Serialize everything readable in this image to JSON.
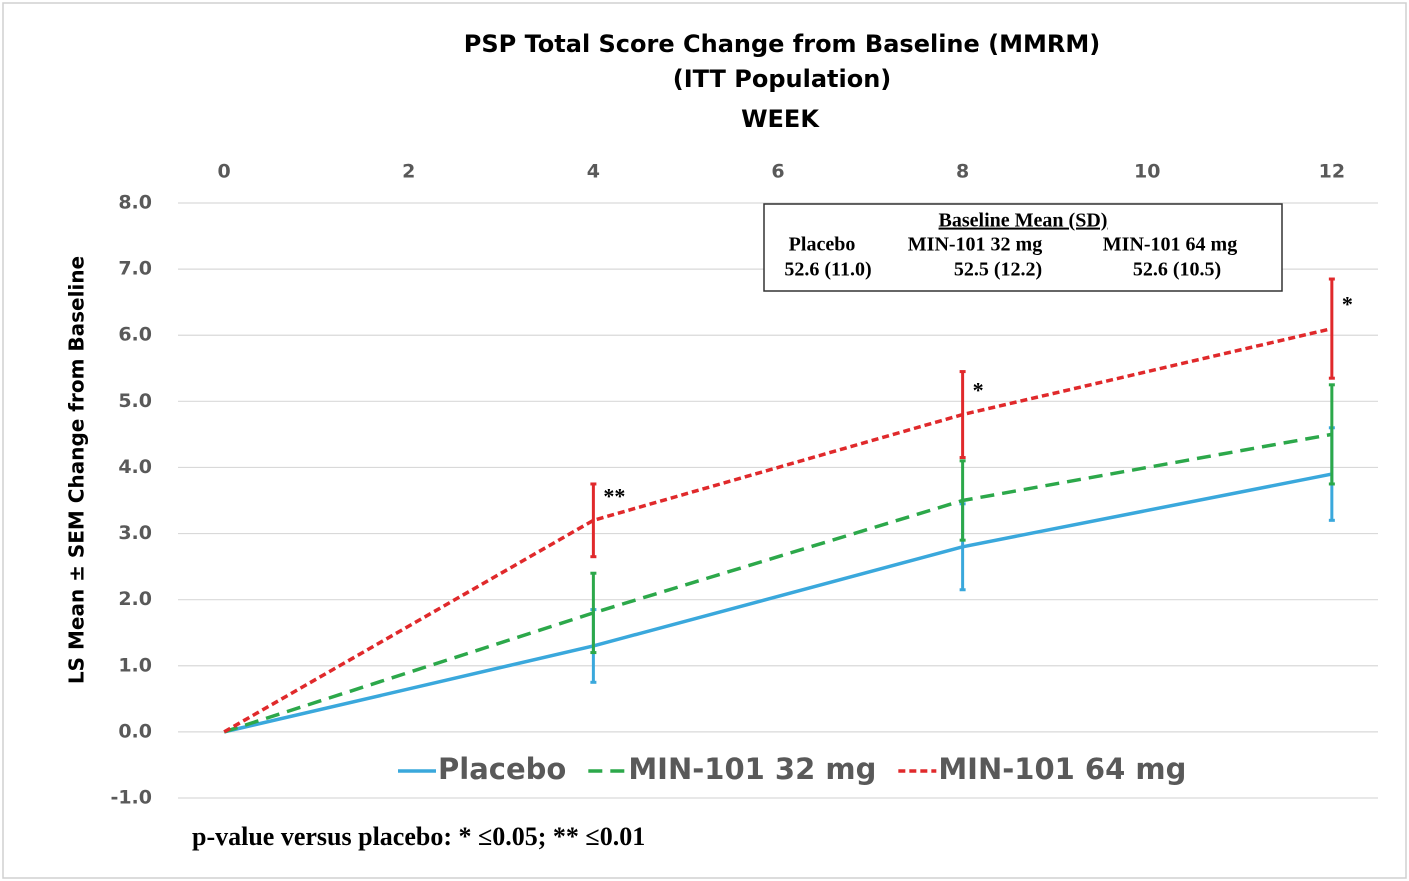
{
  "chart_data": {
    "type": "line",
    "title": "PSP Total Score Change from Baseline (MMRM)",
    "subtitle": "(ITT Population)",
    "x_label": "WEEK",
    "y_label": "LS Mean ± SEM Change from Baseline",
    "x": [
      0,
      4,
      8,
      12
    ],
    "xlim": [
      -0.5,
      12.5
    ],
    "xticks": [
      0,
      2,
      4,
      6,
      8,
      10,
      12
    ],
    "ylim": [
      -1,
      8
    ],
    "yticks": [
      {
        "value": -1,
        "label": "-1.0"
      },
      {
        "value": 0,
        "label": "0.0"
      },
      {
        "value": 1,
        "label": "1.0"
      },
      {
        "value": 2,
        "label": "2.0"
      },
      {
        "value": 3,
        "label": "3.0"
      },
      {
        "value": 4,
        "label": "4.0"
      },
      {
        "value": 5,
        "label": "5.0"
      },
      {
        "value": 6,
        "label": "6.0"
      },
      {
        "value": 7,
        "label": "7.0"
      },
      {
        "value": 8,
        "label": "8.0"
      }
    ],
    "grid": true,
    "legend": "bottom",
    "series": [
      {
        "name": "Placebo",
        "color": "#3aa8dc",
        "line_style": "solid",
        "values": [
          0,
          1.3,
          2.8,
          3.9
        ],
        "errors": [
          null,
          0.55,
          0.65,
          0.7
        ]
      },
      {
        "name": "MIN-101 32 mg",
        "color": "#2ca84a",
        "line_style": "dashed",
        "values": [
          0,
          1.8,
          3.5,
          4.5
        ],
        "errors": [
          null,
          0.6,
          0.6,
          0.75
        ]
      },
      {
        "name": "MIN-101 64 mg",
        "color": "#e0292b",
        "line_style": "dotted",
        "values": [
          0,
          3.2,
          4.8,
          6.1
        ],
        "errors": [
          null,
          0.55,
          0.65,
          0.75
        ],
        "significance": [
          null,
          "**",
          "*",
          "*"
        ]
      }
    ],
    "inset": {
      "title": "Baseline Mean (SD)",
      "columns": [
        "Placebo",
        "MIN-101 32 mg",
        "MIN-101 64 mg"
      ],
      "values": [
        "52.6 (11.0)",
        "52.5 (12.2)",
        "52.6 (10.5)"
      ]
    },
    "footnote": "p-value versus placebo: * ≤0.05;  ** ≤0.01"
  }
}
